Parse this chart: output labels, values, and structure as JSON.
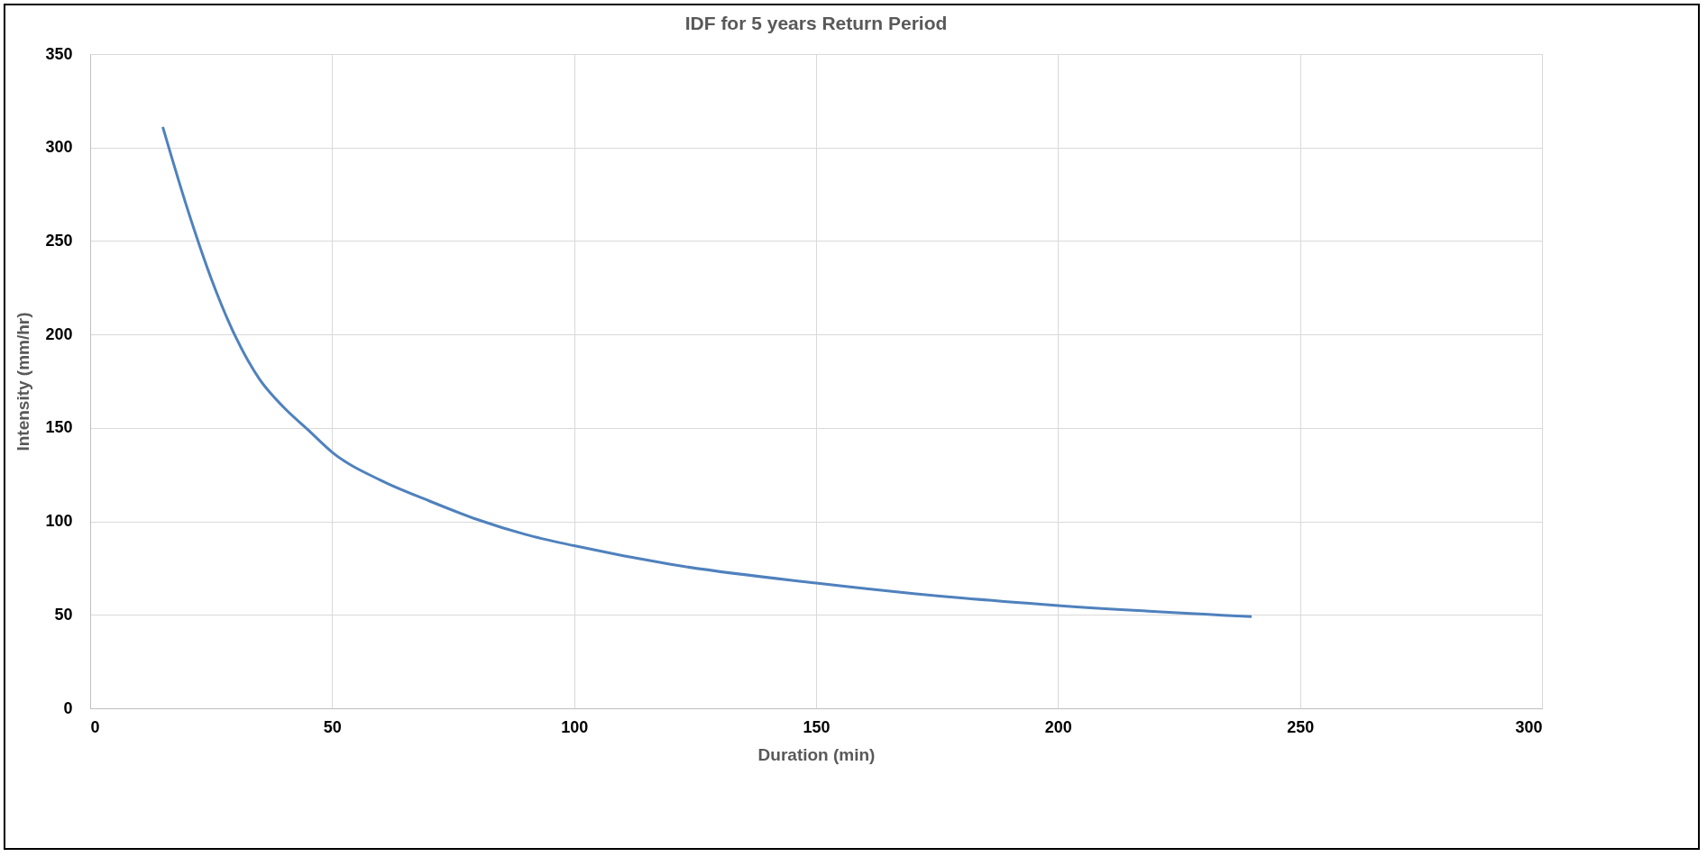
{
  "chart_data": {
    "type": "line",
    "title": "IDF for 5 years Return Period",
    "xlabel": "Duration (min)",
    "ylabel": "Intensity (mm/hr)",
    "xlim": [
      0,
      300
    ],
    "xticks": [
      0,
      50,
      100,
      150,
      200,
      250,
      300
    ],
    "ylim": [
      0,
      350
    ],
    "yticks": [
      0,
      50,
      100,
      150,
      200,
      250,
      300,
      350
    ],
    "grid": true,
    "marker": "none",
    "line_style": "solid",
    "series": [
      {
        "color": "#4f81bd",
        "x": [
          15,
          20,
          25,
          30,
          35,
          40,
          45,
          50,
          60,
          70,
          80,
          90,
          100,
          120,
          150,
          180,
          200,
          240
        ],
        "values": [
          311,
          268,
          230,
          199,
          176,
          161,
          149,
          137,
          122,
          111,
          101,
          93,
          87,
          77,
          67,
          59,
          55,
          49
        ]
      }
    ]
  }
}
